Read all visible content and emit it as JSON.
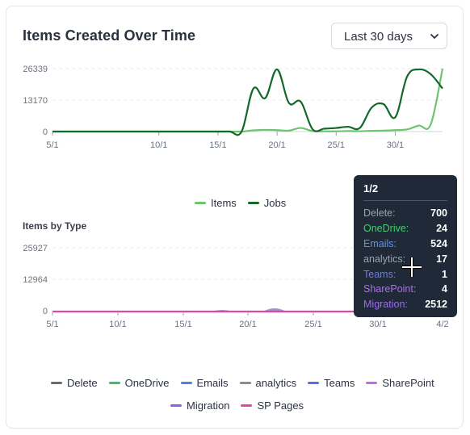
{
  "card": {
    "title": "Items Created Over Time",
    "range_select": {
      "value": "Last 30 days",
      "icon": "chevron-down-icon"
    }
  },
  "chart_data": [
    {
      "type": "line",
      "title": "Items Created Over Time",
      "x_ticks": [
        "5/1",
        "10/1",
        "15/1",
        "20/1",
        "25/1",
        "30/1"
      ],
      "y_ticks": [
        "26339",
        "13170",
        "0"
      ],
      "ylim": [
        0,
        26339
      ],
      "grid": true,
      "legend_position": "bottom-center",
      "x": [
        1,
        2,
        3,
        4,
        5,
        6,
        7,
        8,
        9,
        10,
        11,
        12,
        13,
        14,
        15,
        16,
        17,
        18,
        19,
        20,
        21,
        22,
        23,
        24,
        25,
        26,
        27,
        28,
        29,
        30,
        31,
        32,
        33,
        34
      ],
      "series": [
        {
          "name": "Items",
          "color": "#6cc56f",
          "values": [
            0,
            0,
            0,
            0,
            0,
            0,
            0,
            0,
            0,
            0,
            0,
            0,
            0,
            0,
            0,
            0,
            0,
            500,
            700,
            600,
            400,
            1500,
            200,
            100,
            100,
            200,
            150,
            300,
            400,
            600,
            900,
            2500,
            3000,
            26339
          ]
        },
        {
          "name": "Jobs",
          "color": "#12692a",
          "values": [
            0,
            0,
            0,
            0,
            0,
            0,
            0,
            0,
            0,
            0,
            0,
            0,
            0,
            0,
            0,
            0,
            0,
            18000,
            14000,
            26000,
            12000,
            12500,
            1000,
            1200,
            1500,
            2000,
            1500,
            10000,
            11500,
            6000,
            23000,
            26000,
            24000,
            18000
          ]
        }
      ]
    },
    {
      "type": "area",
      "title": "Items by Type",
      "x_ticks": [
        "5/1",
        "10/1",
        "15/1",
        "20/1",
        "25/1",
        "30/1",
        "4/2"
      ],
      "y_ticks": [
        "25927",
        "12964",
        "0"
      ],
      "ylim": [
        0,
        25927
      ],
      "grid": true,
      "legend_position": "bottom-center",
      "series": [
        {
          "name": "Delete",
          "color": "#6b6b6b"
        },
        {
          "name": "OneDrive",
          "color": "#3fbf5f"
        },
        {
          "name": "Emails",
          "color": "#4a82e8"
        },
        {
          "name": "analytics",
          "color": "#8a8a8a"
        },
        {
          "name": "Teams",
          "color": "#5b6ee0"
        },
        {
          "name": "SharePoint",
          "color": "#b067e6"
        },
        {
          "name": "Migration",
          "color": "#8d5ee8"
        },
        {
          "name": "SP Pages",
          "color": "#e0479e"
        }
      ]
    }
  ],
  "tooltip": {
    "header": "1/2",
    "rows": [
      {
        "label": "Delete:",
        "value": "700",
        "color": "#9ca3af"
      },
      {
        "label": "OneDrive:",
        "value": "24",
        "color": "#3fd26a"
      },
      {
        "label": "Emails:",
        "value": "524",
        "color": "#5b93f0"
      },
      {
        "label": "analytics:",
        "value": "17",
        "color": "#9ca3af"
      },
      {
        "label": "Teams:",
        "value": "1",
        "color": "#6b7cf0"
      },
      {
        "label": "SharePoint:",
        "value": "4",
        "color": "#b36cf0"
      },
      {
        "label": "Migration:",
        "value": "2512",
        "color": "#9a6cf0"
      }
    ]
  },
  "legend_top": [
    {
      "label": "Items",
      "color": "#6cc56f"
    },
    {
      "label": "Jobs",
      "color": "#12692a"
    }
  ],
  "legend_bottom_row1": [
    {
      "label": "Delete",
      "color": "#6b6b6b"
    },
    {
      "label": "OneDrive",
      "color": "#3fbf5f"
    },
    {
      "label": "Emails",
      "color": "#4a82e8"
    },
    {
      "label": "analytics",
      "color": "#8a8a8a"
    },
    {
      "label": "Teams",
      "color": "#5b6ee0"
    },
    {
      "label": "SharePoint",
      "color": "#c36ae8"
    }
  ],
  "legend_bottom_row2": [
    {
      "label": "Migration",
      "color": "#8d5ee8"
    },
    {
      "label": "SP Pages",
      "color": "#e0479e"
    }
  ]
}
